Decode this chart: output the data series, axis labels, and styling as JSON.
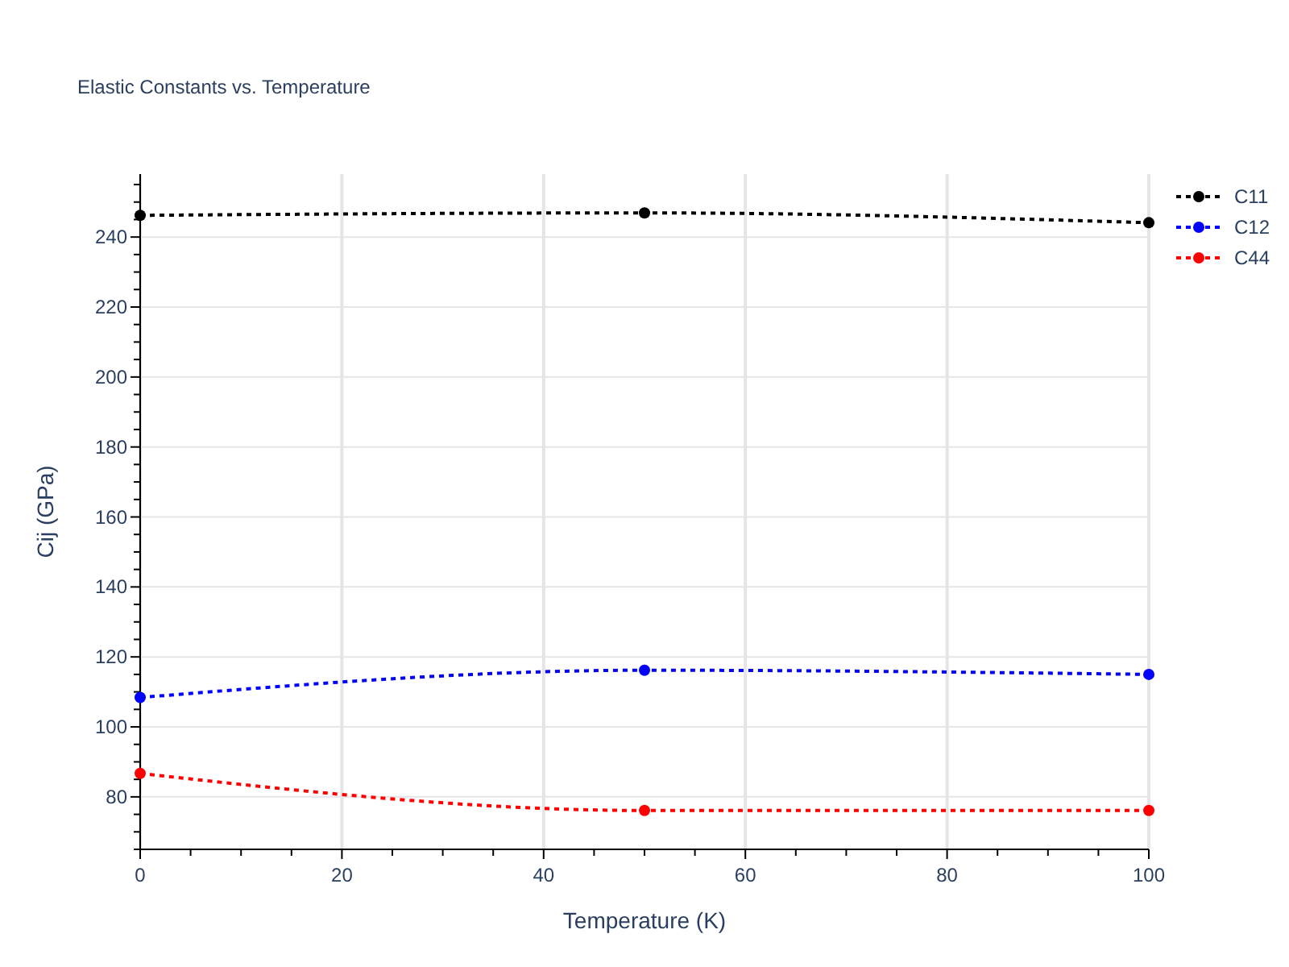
{
  "chart_data": {
    "type": "line",
    "title": "Elastic Constants vs. Temperature",
    "xlabel": "Temperature (K)",
    "ylabel": "Cij (GPa)",
    "x": [
      0,
      50,
      100
    ],
    "series": [
      {
        "name": "C11",
        "color": "#000000",
        "values": [
          246.2,
          246.9,
          244.1
        ]
      },
      {
        "name": "C12",
        "color": "#0000ff",
        "values": [
          108.4,
          116.2,
          115.0
        ]
      },
      {
        "name": "C44",
        "color": "#ff0000",
        "values": [
          86.7,
          76.1,
          76.1
        ]
      }
    ],
    "xlim": [
      0,
      100
    ],
    "ylim": [
      65,
      258
    ],
    "xticks": [
      0,
      {
        "value": 5,
        "label": null
      },
      {
        "value": 10,
        "label": null
      },
      {
        "value": 15,
        "label": null
      },
      20,
      {
        "value": 25,
        "label": null
      },
      {
        "value": 30,
        "label": null
      },
      {
        "value": 35,
        "label": null
      },
      40,
      {
        "value": 45,
        "label": null
      },
      {
        "value": 50,
        "label": null
      },
      {
        "value": 55,
        "label": null
      },
      60,
      {
        "value": 65,
        "label": null
      },
      {
        "value": 70,
        "label": null
      },
      {
        "value": 75,
        "label": null
      },
      80,
      {
        "value": 85,
        "label": null
      },
      {
        "value": 90,
        "label": null
      },
      {
        "value": 95,
        "label": null
      },
      100
    ],
    "yticks": [
      {
        "value": 65,
        "label": null
      },
      {
        "value": 70,
        "label": null
      },
      {
        "value": 75,
        "label": null
      },
      80,
      {
        "value": 85,
        "label": null
      },
      {
        "value": 90,
        "label": null
      },
      {
        "value": 95,
        "label": null
      },
      100,
      {
        "value": 105,
        "label": null
      },
      {
        "value": 110,
        "label": null
      },
      {
        "value": 115,
        "label": null
      },
      120,
      {
        "value": 125,
        "label": null
      },
      {
        "value": 130,
        "label": null
      },
      {
        "value": 135,
        "label": null
      },
      140,
      {
        "value": 145,
        "label": null
      },
      {
        "value": 150,
        "label": null
      },
      {
        "value": 155,
        "label": null
      },
      160,
      {
        "value": 165,
        "label": null
      },
      {
        "value": 170,
        "label": null
      },
      {
        "value": 175,
        "label": null
      },
      180,
      {
        "value": 185,
        "label": null
      },
      {
        "value": 190,
        "label": null
      },
      {
        "value": 195,
        "label": null
      },
      200,
      {
        "value": 205,
        "label": null
      },
      {
        "value": 210,
        "label": null
      },
      {
        "value": 215,
        "label": null
      },
      220,
      {
        "value": 225,
        "label": null
      },
      {
        "value": 230,
        "label": null
      },
      {
        "value": 235,
        "label": null
      },
      240,
      {
        "value": 245,
        "label": null
      },
      {
        "value": 250,
        "label": null
      },
      {
        "value": 255,
        "label": null
      }
    ],
    "grid": true,
    "legend": "top right",
    "marker": "circle",
    "line_style": "dotted"
  }
}
